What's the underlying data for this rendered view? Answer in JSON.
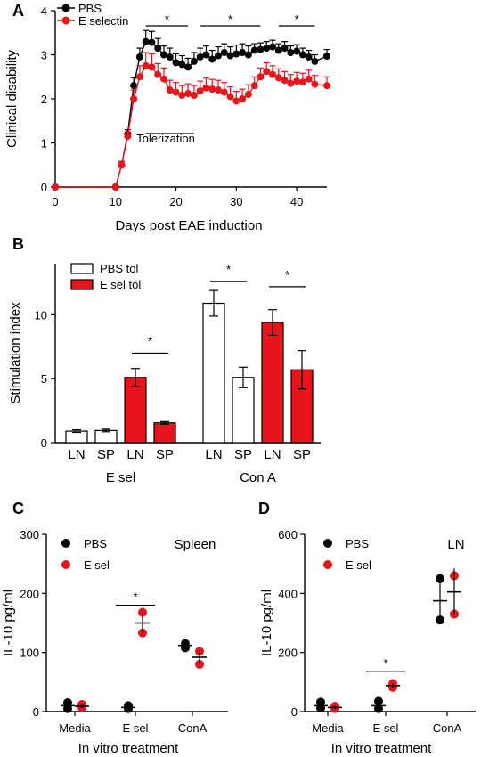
{
  "panels": {
    "A": "A",
    "B": "B",
    "C": "C",
    "D": "D"
  },
  "colors": {
    "pbs": "#000000",
    "esel": "#e8141b",
    "white": "#ffffff"
  },
  "chart_data": [
    {
      "panel": "A",
      "type": "line",
      "xlabel": "Days post EAE induction",
      "ylabel": "Clinical disability",
      "xlim": [
        0,
        45
      ],
      "ylim": [
        0,
        4
      ],
      "xticks": [
        "0",
        "10",
        "20",
        "30",
        "40"
      ],
      "yticks": [
        "0",
        "1",
        "2",
        "3",
        "4"
      ],
      "legend_position": "top-left",
      "annotation": "Tolerization",
      "annotation_range": [
        15,
        23
      ],
      "significance": [
        {
          "x1": 15,
          "x2": 22,
          "label": "*"
        },
        {
          "x1": 24,
          "x2": 34,
          "label": "*"
        },
        {
          "x1": 37,
          "x2": 43,
          "label": "*"
        }
      ],
      "x": [
        0,
        10,
        11,
        12,
        13,
        14,
        15,
        16,
        17,
        18,
        19,
        20,
        21,
        22,
        23,
        24,
        25,
        26,
        27,
        28,
        29,
        30,
        31,
        32,
        33,
        34,
        35,
        36,
        37,
        38,
        39,
        40,
        41,
        42,
        43,
        45
      ],
      "series": [
        {
          "name": "PBS",
          "color": "#000000",
          "values": [
            0,
            0,
            0.5,
            1.2,
            2.3,
            2.95,
            3.3,
            3.28,
            3.15,
            3.0,
            2.95,
            2.82,
            2.78,
            2.72,
            2.85,
            2.95,
            3.0,
            2.9,
            2.98,
            3.05,
            2.98,
            3.02,
            3.05,
            3.0,
            3.1,
            3.12,
            3.15,
            3.18,
            3.1,
            3.15,
            3.05,
            3.08,
            3.0,
            2.95,
            2.85,
            2.97
          ],
          "error": [
            0,
            0,
            0.08,
            0.1,
            0.18,
            0.2,
            0.25,
            0.25,
            0.22,
            0.2,
            0.2,
            0.2,
            0.2,
            0.2,
            0.2,
            0.2,
            0.2,
            0.2,
            0.2,
            0.2,
            0.2,
            0.2,
            0.2,
            0.2,
            0.15,
            0.15,
            0.15,
            0.15,
            0.15,
            0.15,
            0.15,
            0.15,
            0.15,
            0.15,
            0.15,
            0.15
          ]
        },
        {
          "name": "E selectin",
          "color": "#e8141b",
          "values": [
            0,
            0,
            0.5,
            1.15,
            2.0,
            2.5,
            2.75,
            2.72,
            2.55,
            2.45,
            2.2,
            2.15,
            2.08,
            2.12,
            2.08,
            2.18,
            2.25,
            2.22,
            2.2,
            2.15,
            2.05,
            1.95,
            2.0,
            2.1,
            2.3,
            2.5,
            2.62,
            2.55,
            2.48,
            2.42,
            2.35,
            2.4,
            2.38,
            2.45,
            2.33,
            2.3
          ],
          "error": [
            0,
            0,
            0.08,
            0.1,
            0.2,
            0.25,
            0.3,
            0.3,
            0.25,
            0.25,
            0.22,
            0.22,
            0.22,
            0.22,
            0.22,
            0.22,
            0.22,
            0.22,
            0.22,
            0.22,
            0.22,
            0.22,
            0.22,
            0.22,
            0.2,
            0.2,
            0.2,
            0.2,
            0.2,
            0.2,
            0.2,
            0.2,
            0.2,
            0.2,
            0.2,
            0.2
          ]
        }
      ]
    },
    {
      "panel": "B",
      "type": "bar",
      "ylabel": "Stimulation index",
      "ylim": [
        0,
        14
      ],
      "yticks": [
        "0",
        "5",
        "10"
      ],
      "legend_position": "top-left",
      "legend": [
        {
          "name": "PBS tol",
          "fill": "#ffffff"
        },
        {
          "name": "E sel tol",
          "fill": "#e8141b"
        }
      ],
      "groups": [
        {
          "label": "E sel",
          "bars": [
            {
              "label": "LN",
              "series": "PBS tol",
              "value": 0.9,
              "error": 0.1
            },
            {
              "label": "SP",
              "series": "PBS tol",
              "value": 0.95,
              "error": 0.1
            },
            {
              "label": "LN",
              "series": "E sel tol",
              "value": 5.1,
              "error": 0.7
            },
            {
              "label": "SP",
              "series": "E sel tol",
              "value": 1.55,
              "error": 0.1
            }
          ]
        },
        {
          "label": "Con A",
          "bars": [
            {
              "label": "LN",
              "series": "PBS tol",
              "value": 10.9,
              "error": 1.0
            },
            {
              "label": "SP",
              "series": "PBS tol",
              "value": 5.1,
              "error": 0.8
            },
            {
              "label": "LN",
              "series": "E sel tol",
              "value": 9.4,
              "error": 1.0
            },
            {
              "label": "SP",
              "series": "E sel tol",
              "value": 5.7,
              "error": 1.5
            }
          ]
        }
      ],
      "significance": [
        {
          "bars": [
            2,
            3
          ],
          "level": 7.0,
          "label": "*"
        },
        {
          "bars": [
            4,
            5
          ],
          "level": 12.6,
          "label": "*"
        },
        {
          "bars": [
            6,
            7
          ],
          "level": 12.2,
          "label": "*"
        }
      ]
    },
    {
      "panel": "C",
      "type": "scatter",
      "title": "Spleen",
      "xlabel": "In vitro treatment",
      "ylabel": "IL-10 pg/ml",
      "ylim": [
        0,
        300
      ],
      "yticks": [
        "0",
        "100",
        "200",
        "300"
      ],
      "categories": [
        "Media",
        "E sel",
        "ConA"
      ],
      "legend_position": "top-left",
      "series": [
        {
          "name": "PBS",
          "color": "#000000",
          "points": [
            [
              0,
              15
            ],
            [
              0,
              5
            ],
            [
              1,
              10
            ],
            [
              1,
              5
            ],
            [
              2,
              115
            ],
            [
              2,
              108
            ]
          ],
          "mean": [
            10,
            7,
            112
          ],
          "sd": [
            5,
            3,
            5
          ]
        },
        {
          "name": "E sel",
          "color": "#e8141b",
          "points": [
            [
              0,
              12
            ],
            [
              0,
              7
            ],
            [
              1,
              168
            ],
            [
              1,
              133
            ],
            [
              2,
              102
            ],
            [
              2,
              80
            ]
          ],
          "mean": [
            9,
            150,
            92
          ],
          "sd": [
            3,
            18,
            12
          ]
        }
      ],
      "significance": [
        {
          "category": 1,
          "level": 180,
          "label": "*"
        }
      ]
    },
    {
      "panel": "D",
      "type": "scatter",
      "title": "LN",
      "xlabel": "In vitro treatment",
      "ylabel": "IL-10 pg/ml",
      "ylim": [
        0,
        600
      ],
      "yticks": [
        "0",
        "200",
        "400",
        "600"
      ],
      "categories": [
        "Media",
        "E sel",
        "ConA"
      ],
      "legend_position": "top-left",
      "series": [
        {
          "name": "PBS",
          "color": "#000000",
          "points": [
            [
              0,
              32
            ],
            [
              0,
              12
            ],
            [
              1,
              35
            ],
            [
              1,
              10
            ],
            [
              2,
              450
            ],
            [
              2,
              310
            ]
          ],
          "mean": [
            20,
            20,
            375
          ],
          "sd": [
            12,
            15,
            70
          ]
        },
        {
          "name": "E sel",
          "color": "#e8141b",
          "points": [
            [
              0,
              18
            ],
            [
              0,
              10
            ],
            [
              1,
              95
            ],
            [
              1,
              82
            ],
            [
              2,
              460
            ],
            [
              2,
              330
            ]
          ],
          "mean": [
            14,
            88,
            405
          ],
          "sd": [
            6,
            8,
            80
          ]
        }
      ],
      "significance": [
        {
          "category": 1,
          "level": 135,
          "label": "*"
        }
      ]
    }
  ]
}
